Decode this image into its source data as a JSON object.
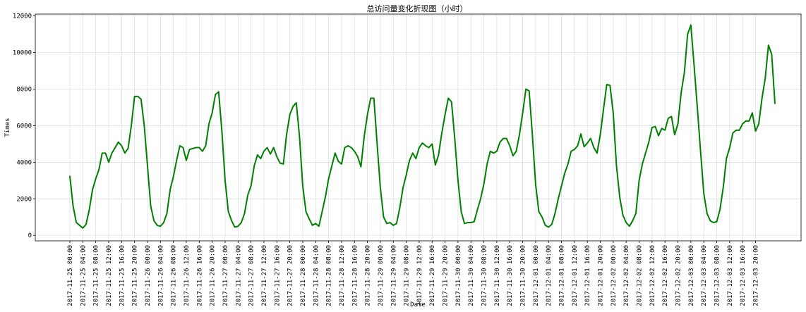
{
  "chart_data": {
    "type": "line",
    "title": "总访问量变化折现图（小时）",
    "xlabel": "Date",
    "ylabel": "Times",
    "ylim": [
      -300,
      12100
    ],
    "yticks": [
      0,
      2000,
      4000,
      6000,
      8000,
      10000,
      12000
    ],
    "grid": true,
    "line_color": "#008000",
    "x_start": "2017-11-25 00:00",
    "x_step_hours": 1,
    "xtick_every_hours": 4,
    "xtick_labels": [
      "2017-11-25 00:00",
      "2017-11-25 04:00",
      "2017-11-25 08:00",
      "2017-11-25 12:00",
      "2017-11-25 16:00",
      "2017-11-25 20:00",
      "2017-11-26 00:00",
      "2017-11-26 04:00",
      "2017-11-26 08:00",
      "2017-11-26 12:00",
      "2017-11-26 16:00",
      "2017-11-26 20:00",
      "2017-11-27 00:00",
      "2017-11-27 04:00",
      "2017-11-27 08:00",
      "2017-11-27 12:00",
      "2017-11-27 16:00",
      "2017-11-27 20:00",
      "2017-11-28 00:00",
      "2017-11-28 04:00",
      "2017-11-28 08:00",
      "2017-11-28 12:00",
      "2017-11-28 16:00",
      "2017-11-28 20:00",
      "2017-11-29 00:00",
      "2017-11-29 04:00",
      "2017-11-29 08:00",
      "2017-11-29 12:00",
      "2017-11-29 16:00",
      "2017-11-29 20:00",
      "2017-11-30 00:00",
      "2017-11-30 04:00",
      "2017-11-30 08:00",
      "2017-11-30 12:00",
      "2017-11-30 16:00",
      "2017-11-30 20:00",
      "2017-12-01 00:00",
      "2017-12-01 04:00",
      "2017-12-01 08:00",
      "2017-12-01 12:00",
      "2017-12-01 16:00",
      "2017-12-01 20:00",
      "2017-12-02 00:00",
      "2017-12-02 04:00",
      "2017-12-02 08:00",
      "2017-12-02 12:00",
      "2017-12-02 16:00",
      "2017-12-02 20:00",
      "2017-12-03 00:00",
      "2017-12-03 04:00",
      "2017-12-03 08:00",
      "2017-12-03 12:00",
      "2017-12-03 16:00",
      "2017-12-03 20:00"
    ],
    "series": [
      {
        "values": [
          3250,
          1600,
          700,
          550,
          400,
          600,
          1400,
          2500,
          3100,
          3600,
          4500,
          4500,
          4000,
          4500,
          4800,
          5100,
          4900,
          4500,
          4750,
          6000,
          7600,
          7600,
          7450,
          6000,
          3800,
          1600,
          800,
          550,
          500,
          700,
          1200,
          2500,
          3200,
          4100,
          4900,
          4800,
          4100,
          4700,
          4750,
          4800,
          4800,
          4600,
          4900,
          6100,
          6700,
          7700,
          7850,
          5700,
          3000,
          1300,
          800,
          450,
          500,
          700,
          1200,
          2200,
          2700,
          3800,
          4400,
          4200,
          4600,
          4800,
          4450,
          4800,
          4300,
          3950,
          3900,
          5500,
          6600,
          7050,
          7250,
          5400,
          2700,
          1300,
          900,
          550,
          650,
          500,
          1300,
          2100,
          3100,
          3800,
          4500,
          4050,
          3900,
          4800,
          4900,
          4800,
          4600,
          4300,
          3750,
          5400,
          6600,
          7500,
          7500,
          5000,
          2600,
          1000,
          650,
          700,
          550,
          650,
          1500,
          2600,
          3300,
          4100,
          4500,
          4200,
          4800,
          5050,
          4900,
          4800,
          5000,
          3850,
          4400,
          5600,
          6600,
          7500,
          7300,
          5300,
          3000,
          1300,
          650,
          700,
          700,
          750,
          1400,
          2000,
          2800,
          3900,
          4600,
          4500,
          4600,
          5100,
          5300,
          5300,
          4900,
          4350,
          4600,
          5500,
          6700,
          8000,
          7900,
          5500,
          2800,
          1300,
          1000,
          550,
          450,
          600,
          1200,
          2000,
          2700,
          3400,
          3900,
          4600,
          4700,
          4900,
          5550,
          4850,
          5050,
          5300,
          4800,
          4500,
          5500,
          6900,
          8250,
          8200,
          6700,
          3800,
          2100,
          1100,
          700,
          500,
          800,
          1200,
          3000,
          3900,
          4500,
          5100,
          5900,
          5950,
          5450,
          5850,
          5750,
          6400,
          6500,
          5500,
          6100,
          7800,
          8900,
          11000,
          11500,
          9300,
          7000,
          4600,
          2300,
          1200,
          800,
          700,
          750,
          1400,
          2600,
          4200,
          4800,
          5600,
          5750,
          5750,
          6100,
          6250,
          6250,
          6700,
          5700,
          6100,
          7500,
          8600,
          10400,
          9900,
          7200
        ]
      }
    ]
  }
}
